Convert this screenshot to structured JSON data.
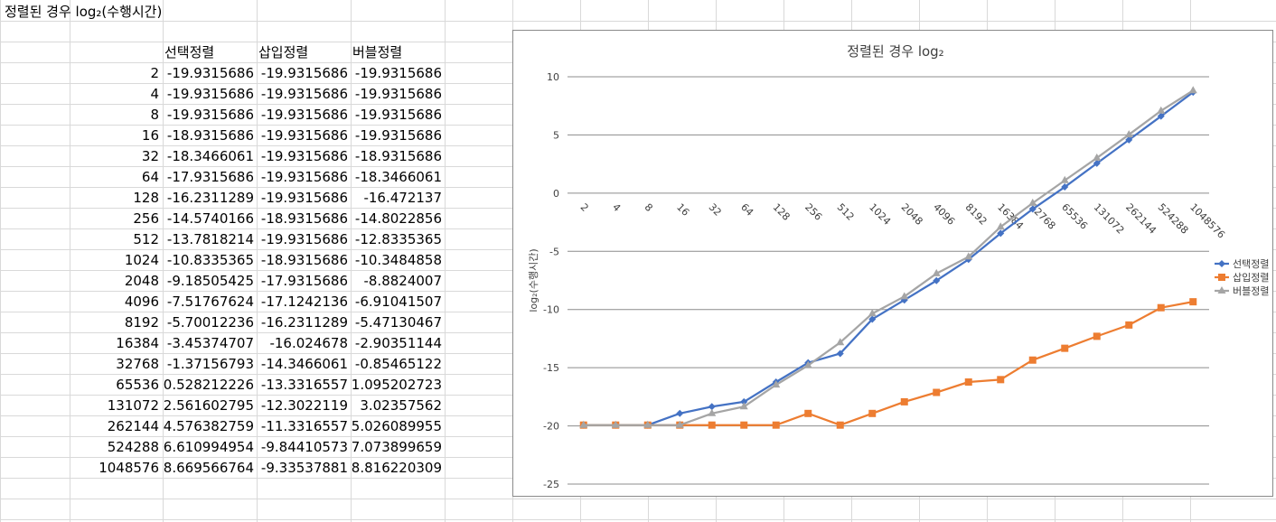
{
  "sheet": {
    "title": "정렬된 경우  log₂(수행시간)",
    "headers": [
      "선택정렬",
      "삽입정렬",
      "버블정렬"
    ],
    "rows": [
      {
        "n": "2",
        "sel": "-19.9315686",
        "ins": "-19.9315686",
        "bub": "-19.9315686"
      },
      {
        "n": "4",
        "sel": "-19.9315686",
        "ins": "-19.9315686",
        "bub": "-19.9315686"
      },
      {
        "n": "8",
        "sel": "-19.9315686",
        "ins": "-19.9315686",
        "bub": "-19.9315686"
      },
      {
        "n": "16",
        "sel": "-18.9315686",
        "ins": "-19.9315686",
        "bub": "-19.9315686"
      },
      {
        "n": "32",
        "sel": "-18.3466061",
        "ins": "-19.9315686",
        "bub": "-18.9315686"
      },
      {
        "n": "64",
        "sel": "-17.9315686",
        "ins": "-19.9315686",
        "bub": "-18.3466061"
      },
      {
        "n": "128",
        "sel": "-16.2311289",
        "ins": "-19.9315686",
        "bub": "-16.472137"
      },
      {
        "n": "256",
        "sel": "-14.5740166",
        "ins": "-18.9315686",
        "bub": "-14.8022856"
      },
      {
        "n": "512",
        "sel": "-13.7818214",
        "ins": "-19.9315686",
        "bub": "-12.8335365"
      },
      {
        "n": "1024",
        "sel": "-10.8335365",
        "ins": "-18.9315686",
        "bub": "-10.3484858"
      },
      {
        "n": "2048",
        "sel": "-9.18505425",
        "ins": "-17.9315686",
        "bub": "-8.8824007"
      },
      {
        "n": "4096",
        "sel": "-7.51767624",
        "ins": "-17.1242136",
        "bub": "-6.91041507"
      },
      {
        "n": "8192",
        "sel": "-5.70012236",
        "ins": "-16.2311289",
        "bub": "-5.47130467"
      },
      {
        "n": "16384",
        "sel": "-3.45374707",
        "ins": "-16.024678",
        "bub": "-2.90351144"
      },
      {
        "n": "32768",
        "sel": "-1.37156793",
        "ins": "-14.3466061",
        "bub": "-0.85465122"
      },
      {
        "n": "65536",
        "sel": "0.528212226",
        "ins": "-13.3316557",
        "bub": "1.095202723"
      },
      {
        "n": "131072",
        "sel": "2.561602795",
        "ins": "-12.3022119",
        "bub": "3.02357562"
      },
      {
        "n": "262144",
        "sel": "4.576382759",
        "ins": "-11.3316557",
        "bub": "5.026089955"
      },
      {
        "n": "524288",
        "sel": "6.610994954",
        "ins": "-9.84410573",
        "bub": "7.073899659"
      },
      {
        "n": "1048576",
        "sel": "8.669566764",
        "ins": "-9.33537881",
        "bub": "8.816220309"
      }
    ]
  },
  "colors": {
    "gridline": "#d9d9d9",
    "sel": "#4472c4",
    "ins": "#ed7d31",
    "bub": "#a5a5a5",
    "chart_grid": "#8c8c8c"
  },
  "chart_data": {
    "type": "line",
    "title": "정렬된 경우  log₂",
    "xlabel": "",
    "ylabel": "log₂(수행시간)",
    "categories": [
      "2",
      "4",
      "8",
      "16",
      "32",
      "64",
      "128",
      "256",
      "512",
      "1024",
      "2048",
      "4096",
      "8192",
      "16384",
      "32768",
      "65536",
      "131072",
      "262144",
      "524288",
      "1048576"
    ],
    "ylim": [
      -25,
      10
    ],
    "yticks": [
      10,
      5,
      0,
      -5,
      -10,
      -15,
      -20,
      -25
    ],
    "grid": true,
    "legend": "right",
    "series": [
      {
        "name": "선택정렬",
        "marker": "diamond",
        "values": [
          -19.9315686,
          -19.9315686,
          -19.9315686,
          -18.9315686,
          -18.3466061,
          -17.9315686,
          -16.2311289,
          -14.5740166,
          -13.7818214,
          -10.8335365,
          -9.18505425,
          -7.51767624,
          -5.70012236,
          -3.45374707,
          -1.37156793,
          0.528212226,
          2.561602795,
          4.576382759,
          6.610994954,
          8.669566764
        ]
      },
      {
        "name": "삽입정렬",
        "marker": "square",
        "values": [
          -19.9315686,
          -19.9315686,
          -19.9315686,
          -19.9315686,
          -19.9315686,
          -19.9315686,
          -19.9315686,
          -18.9315686,
          -19.9315686,
          -18.9315686,
          -17.9315686,
          -17.1242136,
          -16.2311289,
          -16.024678,
          -14.3466061,
          -13.3316557,
          -12.3022119,
          -11.3316557,
          -9.84410573,
          -9.33537881
        ]
      },
      {
        "name": "버블정렬",
        "marker": "triangle",
        "values": [
          -19.9315686,
          -19.9315686,
          -19.9315686,
          -19.9315686,
          -18.9315686,
          -18.3466061,
          -16.472137,
          -14.8022856,
          -12.8335365,
          -10.3484858,
          -8.8824007,
          -6.91041507,
          -5.47130467,
          -2.90351144,
          -0.85465122,
          1.095202723,
          3.02357562,
          5.026089955,
          7.073899659,
          8.816220309
        ]
      }
    ]
  }
}
